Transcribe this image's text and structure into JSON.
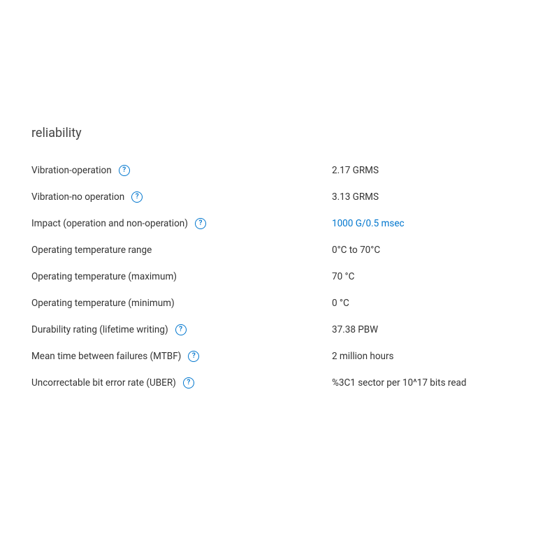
{
  "section": {
    "title": "reliability"
  },
  "rows": [
    {
      "label": "Vibration-operation",
      "help": true,
      "value": "2.17 GRMS",
      "link": false
    },
    {
      "label": "Vibration-no operation",
      "help": true,
      "value": "3.13 GRMS",
      "link": false
    },
    {
      "label": "Impact (operation and non-operation)",
      "help": true,
      "value": "1000 G/0.5 msec",
      "link": true
    },
    {
      "label": "Operating temperature range",
      "help": false,
      "value": "0°C to 70°C",
      "link": false
    },
    {
      "label": "Operating temperature (maximum)",
      "help": false,
      "value": "70 °C",
      "link": false
    },
    {
      "label": "Operating temperature (minimum)",
      "help": false,
      "value": "0 °C",
      "link": false
    },
    {
      "label": "Durability rating (lifetime writing)",
      "help": true,
      "value": "37.38 PBW",
      "link": false
    },
    {
      "label": "Mean time between failures (MTBF)",
      "help": true,
      "value": "2 million hours",
      "link": false
    },
    {
      "label": "Uncorrectable bit error rate (UBER)",
      "help": true,
      "value": "%3C1 sector per 10^17 bits read",
      "link": false
    }
  ],
  "helpGlyph": "?",
  "colors": {
    "text": "#333333",
    "link": "#0076ce",
    "helpBorder": "#0076ce",
    "background": "#ffffff"
  }
}
